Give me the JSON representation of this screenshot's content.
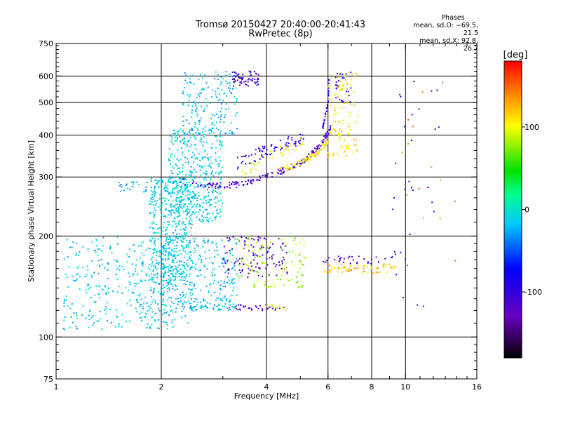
{
  "chart_data": {
    "type": "scatter",
    "title": "Tromsø 20150427 20:40:00-20:41:43",
    "subtitle": "RwPretec (8p)",
    "xlabel": "Frequency [MHz]",
    "ylabel": "Stationary phase Virtual Height [km]",
    "x_scale": "log",
    "y_scale": "log",
    "xlim": [
      1,
      16
    ],
    "ylim": [
      75,
      750
    ],
    "x_ticks": [
      1,
      2,
      4,
      6,
      8,
      10,
      16
    ],
    "x_tick_labels": [
      "1",
      "2",
      "4",
      "6",
      "8",
      "10",
      "16"
    ],
    "y_ticks": [
      75,
      100,
      200,
      300,
      400,
      500,
      600,
      750
    ],
    "y_tick_labels": [
      "75",
      "100",
      "200",
      "300",
      "400",
      "500",
      "600",
      "750"
    ],
    "grid_x": [
      2,
      4,
      6,
      8,
      10
    ],
    "grid_y": [
      100,
      200,
      300,
      400,
      500,
      600
    ],
    "grid": true,
    "colorbar": {
      "label": "[deg]",
      "range": [
        -180,
        180
      ],
      "ticks": [
        100,
        0,
        -100
      ],
      "tick_labels": [
        "100",
        "0",
        "-100"
      ]
    },
    "legend": {
      "heading": "Phases",
      "line_o": "mean, sd,O: −69.5, 21.5",
      "line_x": "mean, sd,X:  92.8, 26.7"
    },
    "clusters": [
      {
        "fmin": 1.05,
        "fmax": 2.2,
        "hmin": 105,
        "hmax": 200,
        "phase": -15,
        "n": 320
      },
      {
        "fmin": 1.7,
        "fmax": 2.5,
        "hmin": 110,
        "hmax": 150,
        "phase": -15,
        "n": 90
      },
      {
        "fmin": 1.85,
        "fmax": 2.45,
        "hmin": 150,
        "hmax": 300,
        "phase": -10,
        "n": 460
      },
      {
        "fmin": 2.1,
        "fmax": 3.0,
        "hmin": 220,
        "hmax": 420,
        "phase": -12,
        "n": 420
      },
      {
        "fmin": 2.3,
        "fmax": 3.3,
        "hmin": 400,
        "hmax": 620,
        "phase": -18,
        "n": 170
      },
      {
        "fmin": 2.0,
        "fmax": 3.3,
        "hmin": 125,
        "hmax": 200,
        "phase": -20,
        "n": 260
      },
      {
        "fmin": 2.4,
        "fmax": 3.3,
        "hmin": 120,
        "hmax": 125,
        "phase": -20,
        "n": 50
      },
      {
        "fmin": 3.2,
        "fmax": 3.8,
        "hmin": 560,
        "hmax": 620,
        "phase": -110,
        "n": 60
      },
      {
        "fmin": 1.5,
        "fmax": 2.1,
        "hmin": 270,
        "hmax": 290,
        "phase": -20,
        "n": 25
      },
      {
        "fmin": 3.0,
        "fmax": 4.6,
        "hmin": 150,
        "hmax": 200,
        "phase": -120,
        "n": 110
      },
      {
        "fmin": 3.3,
        "fmax": 5.2,
        "hmin": 140,
        "hmax": 200,
        "phase": 80,
        "n": 110
      },
      {
        "fmin": 3.2,
        "fmax": 4.5,
        "hmin": 120,
        "hmax": 125,
        "phase": -110,
        "n": 30
      },
      {
        "fmin": 4.0,
        "fmax": 4.6,
        "hmin": 120,
        "hmax": 125,
        "phase": 90,
        "n": 15
      },
      {
        "fmin": 5.8,
        "fmax": 9.4,
        "hmin": 155,
        "hmax": 165,
        "phase": 120,
        "n": 70
      },
      {
        "fmin": 5.8,
        "fmax": 9.4,
        "hmin": 165,
        "hmax": 175,
        "phase": -110,
        "n": 30
      },
      {
        "fmin": 6.0,
        "fmax": 7.3,
        "hmin": 340,
        "hmax": 620,
        "phase": 110,
        "n": 110
      },
      {
        "fmin": 6.3,
        "fmax": 7.0,
        "hmin": 500,
        "hmax": 620,
        "phase": -100,
        "n": 25
      },
      {
        "fmin": 9.0,
        "fmax": 12.5,
        "hmin": 120,
        "hmax": 600,
        "phase": -100,
        "n": 30
      },
      {
        "fmin": 9.5,
        "fmax": 14,
        "hmin": 130,
        "hmax": 620,
        "phase": 150,
        "n": 15
      }
    ],
    "traces": [
      {
        "x": [
          2.3,
          2.8,
          3.3,
          4.0,
          5.0,
          5.7,
          6.1
        ],
        "y": [
          290,
          282,
          285,
          300,
          330,
          370,
          420
        ],
        "phase": -110,
        "n": 170,
        "spread": 0.04
      },
      {
        "x": [
          4.3,
          5.0,
          5.6,
          6.0
        ],
        "y": [
          312,
          330,
          355,
          385
        ],
        "phase": 110,
        "n": 90,
        "spread": 0.04
      },
      {
        "x": [
          3.3,
          4.0,
          4.6,
          5.1
        ],
        "y": [
          330,
          360,
          380,
          390
        ],
        "phase": -90,
        "n": 70,
        "spread": 0.08
      },
      {
        "x": [
          3.4,
          4.0,
          4.6,
          5.1
        ],
        "y": [
          300,
          350,
          360,
          380
        ],
        "phase": 100,
        "n": 40,
        "spread": 0.08
      },
      {
        "x": [
          5.8,
          6.0,
          6.05
        ],
        "y": [
          420,
          500,
          600
        ],
        "phase": -100,
        "n": 40,
        "spread": 0.03
      }
    ]
  }
}
